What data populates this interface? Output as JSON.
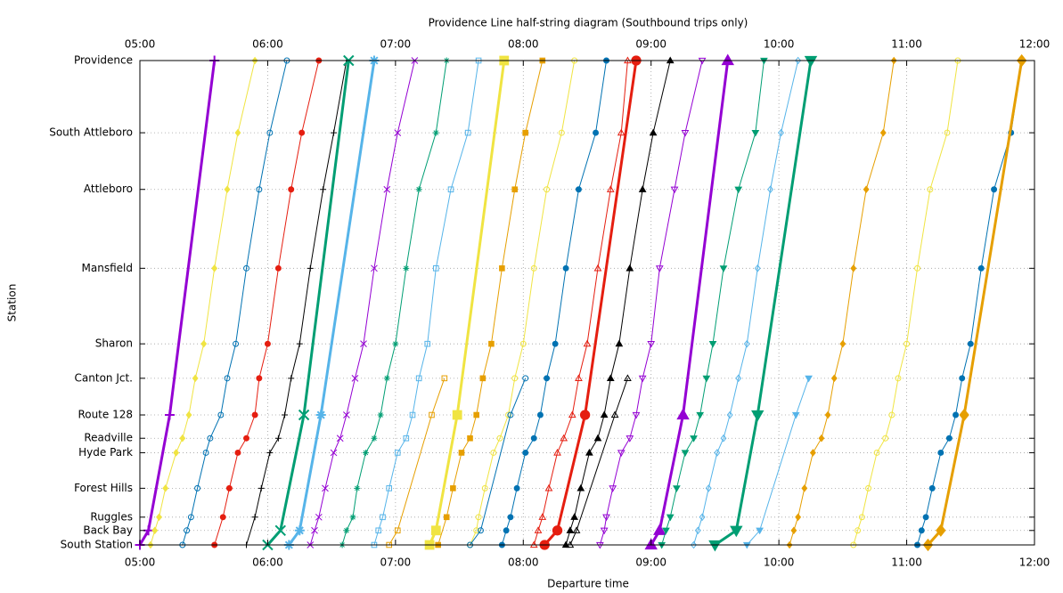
{
  "chart_data": {
    "type": "line",
    "title": "Providence Line half-string diagram (Southbound trips only)",
    "x_label": "Departure time",
    "y_label": "Station",
    "grid": true,
    "xlim": [
      300,
      720
    ],
    "xticks": [
      {
        "value": 300,
        "label": "05:00"
      },
      {
        "value": 360,
        "label": "06:00"
      },
      {
        "value": 420,
        "label": "07:00"
      },
      {
        "value": 480,
        "label": "08:00"
      },
      {
        "value": 540,
        "label": "09:00"
      },
      {
        "value": 600,
        "label": "10:00"
      },
      {
        "value": 660,
        "label": "11:00"
      },
      {
        "value": 720,
        "label": "12:00"
      }
    ],
    "ylim": [
      0,
      43.6
    ],
    "yticks": [
      {
        "value": 0,
        "label": "South Station"
      },
      {
        "value": 1.3,
        "label": "Back Bay"
      },
      {
        "value": 2.5,
        "label": "Ruggles"
      },
      {
        "value": 5.1,
        "label": "Forest Hills"
      },
      {
        "value": 8.3,
        "label": "Hyde Park"
      },
      {
        "value": 9.6,
        "label": "Readville"
      },
      {
        "value": 11.7,
        "label": "Route 128"
      },
      {
        "value": 15,
        "label": "Canton Jct."
      },
      {
        "value": 18.1,
        "label": "Sharon"
      },
      {
        "value": 24.9,
        "label": "Mansfield"
      },
      {
        "value": 32,
        "label": "Attleboro"
      },
      {
        "value": 37.1,
        "label": "South Attleboro"
      },
      {
        "value": 43.6,
        "label": "Providence"
      }
    ],
    "series": [
      {
        "color": "#9400d3",
        "marker": "plus",
        "line_width": 3,
        "x": [
          300,
          304,
          314,
          335
        ],
        "values": [
          0,
          1.3,
          11.7,
          43.6
        ]
      },
      {
        "color": "#f0e442",
        "marker": "diamond",
        "line_width": 1,
        "x": [
          305,
          307,
          309,
          312,
          317,
          320,
          323,
          326,
          330,
          335,
          341,
          346,
          354
        ],
        "values": [
          0,
          1.3,
          2.5,
          5.1,
          8.3,
          9.6,
          11.7,
          15,
          18.1,
          24.9,
          32,
          37.1,
          43.6
        ]
      },
      {
        "color": "#0072b2",
        "marker": "circle-open",
        "line_width": 1,
        "x": [
          320,
          322,
          324,
          327,
          331,
          333,
          338,
          341,
          345,
          350,
          356,
          361,
          369
        ],
        "values": [
          0,
          1.3,
          2.5,
          5.1,
          8.3,
          9.6,
          11.7,
          15,
          18.1,
          24.9,
          32,
          37.1,
          43.6
        ]
      },
      {
        "color": "#e51e10",
        "marker": "circle",
        "line_width": 1,
        "x": [
          335,
          339,
          342,
          346,
          350,
          354,
          356,
          360,
          365,
          371,
          376,
          384
        ],
        "values": [
          0,
          2.5,
          5.1,
          8.3,
          9.6,
          11.7,
          15,
          18.1,
          24.9,
          32,
          37.1,
          43.6
        ]
      },
      {
        "color": "#000000",
        "marker": "plus",
        "line_width": 1,
        "x": [
          350,
          354,
          357,
          361,
          365,
          368,
          371,
          375,
          380,
          386,
          391,
          397
        ],
        "values": [
          0,
          2.5,
          5.1,
          8.3,
          9.6,
          11.7,
          15,
          18.1,
          24.9,
          32,
          37.1,
          43.6
        ]
      },
      {
        "color": "#009e73",
        "marker": "cross",
        "line_width": 3,
        "x": [
          360,
          366,
          377,
          398
        ],
        "values": [
          0,
          1.3,
          11.7,
          43.6
        ]
      },
      {
        "color": "#56b4e9",
        "marker": "star",
        "line_width": 3,
        "x": [
          370,
          375,
          385,
          410
        ],
        "values": [
          0,
          1.3,
          11.7,
          43.6
        ]
      },
      {
        "color": "#9400d3",
        "marker": "cross",
        "line_width": 1,
        "x": [
          380,
          382,
          384,
          387,
          391,
          394,
          397,
          401,
          405,
          410,
          416,
          421,
          429
        ],
        "values": [
          0,
          1.3,
          2.5,
          5.1,
          8.3,
          9.6,
          11.7,
          15,
          18.1,
          24.9,
          32,
          37.1,
          43.6
        ]
      },
      {
        "color": "#009e73",
        "marker": "star",
        "line_width": 1,
        "x": [
          395,
          397,
          400,
          402,
          406,
          410,
          413,
          416,
          420,
          425,
          431,
          439,
          444
        ],
        "values": [
          0,
          1.3,
          2.5,
          5.1,
          8.3,
          9.6,
          11.7,
          15,
          18.1,
          24.9,
          32,
          37.1,
          43.6
        ]
      },
      {
        "color": "#56b4e9",
        "marker": "square-open",
        "line_width": 1,
        "x": [
          410,
          412,
          414,
          417,
          421,
          425,
          428,
          431,
          435,
          439,
          446,
          454,
          459
        ],
        "values": [
          0,
          1.3,
          2.5,
          5.1,
          8.3,
          9.6,
          11.7,
          15,
          18.1,
          24.9,
          32,
          37.1,
          43.6
        ]
      },
      {
        "color": "#e69f00",
        "marker": "square-open",
        "line_width": 1,
        "x": [
          417,
          421,
          437,
          443
        ],
        "values": [
          0,
          1.3,
          11.7,
          15
        ]
      },
      {
        "color": "#f0e442",
        "marker": "square",
        "line_width": 3,
        "x": [
          436,
          439,
          449,
          471
        ],
        "values": [
          0,
          1.3,
          11.7,
          43.6
        ]
      },
      {
        "color": "#e69f00",
        "marker": "square",
        "line_width": 1,
        "x": [
          440,
          444,
          447,
          451,
          455,
          458,
          461,
          465,
          470,
          476,
          481,
          489
        ],
        "values": [
          0,
          2.5,
          5.1,
          8.3,
          9.6,
          11.7,
          15,
          18.1,
          24.9,
          32,
          37.1,
          43.6
        ]
      },
      {
        "color": "#f0e442",
        "marker": "circle-open",
        "line_width": 1,
        "x": [
          455,
          458,
          459,
          462,
          466,
          469,
          473,
          476,
          480,
          485,
          491,
          498,
          504
        ],
        "values": [
          0,
          1.3,
          2.5,
          5.1,
          8.3,
          9.6,
          11.7,
          15,
          18.1,
          24.9,
          32,
          37.1,
          43.6
        ]
      },
      {
        "color": "#0072b2",
        "marker": "circle-open",
        "line_width": 1,
        "x": [
          455,
          460,
          474,
          481
        ],
        "values": [
          0,
          1.3,
          11.7,
          15
        ]
      },
      {
        "color": "#0072b2",
        "marker": "circle",
        "line_width": 1,
        "x": [
          470,
          472,
          474,
          477,
          481,
          485,
          488,
          491,
          495,
          500,
          506,
          514,
          519
        ],
        "values": [
          0,
          1.3,
          2.5,
          5.1,
          8.3,
          9.6,
          11.7,
          15,
          18.1,
          24.9,
          32,
          37.1,
          43.6
        ]
      },
      {
        "color": "#e51e10",
        "marker": "triangle-open",
        "line_width": 1,
        "x": [
          485,
          487,
          489,
          492,
          496,
          499,
          503,
          506,
          510,
          515,
          521,
          526,
          529
        ],
        "values": [
          0,
          1.3,
          2.5,
          5.1,
          8.3,
          9.6,
          11.7,
          15,
          18.1,
          24.9,
          32,
          37.1,
          43.6
        ]
      },
      {
        "color": "#e51e10",
        "marker": "circle",
        "line_width": 3,
        "x": [
          490,
          496,
          509,
          533
        ],
        "values": [
          0,
          1.3,
          11.7,
          43.6
        ]
      },
      {
        "color": "#000000",
        "marker": "triangle",
        "line_width": 1,
        "x": [
          500,
          502,
          504,
          507,
          511,
          515,
          518,
          521,
          525,
          530,
          536,
          541,
          549
        ],
        "values": [
          0,
          1.3,
          2.5,
          5.1,
          8.3,
          9.6,
          11.7,
          15,
          18.1,
          24.9,
          32,
          37.1,
          43.6
        ]
      },
      {
        "color": "#000000",
        "marker": "triangle-open",
        "line_width": 1,
        "x": [
          502,
          505,
          523,
          529
        ],
        "values": [
          0,
          1.3,
          11.7,
          15
        ]
      },
      {
        "color": "#9400d3",
        "marker": "triangle-down-open",
        "line_width": 1,
        "x": [
          516,
          518,
          519,
          522,
          526,
          530,
          533,
          536,
          540,
          544,
          551,
          556,
          564
        ],
        "values": [
          0,
          1.3,
          2.5,
          5.1,
          8.3,
          9.6,
          11.7,
          15,
          18.1,
          24.9,
          32,
          37.1,
          43.6
        ]
      },
      {
        "color": "#9400d3",
        "marker": "triangle",
        "line_width": 3,
        "x": [
          540,
          544,
          555,
          576
        ],
        "values": [
          0,
          1.3,
          11.7,
          43.6
        ]
      },
      {
        "color": "#009e73",
        "marker": "triangle-down",
        "line_width": 1,
        "x": [
          545,
          547,
          549,
          552,
          556,
          560,
          563,
          566,
          569,
          574,
          581,
          589,
          593
        ],
        "values": [
          0,
          1.3,
          2.5,
          5.1,
          8.3,
          9.6,
          11.7,
          15,
          18.1,
          24.9,
          32,
          37.1,
          43.6
        ]
      },
      {
        "color": "#56b4e9",
        "marker": "diamond-open",
        "line_width": 1,
        "x": [
          560,
          562,
          564,
          567,
          571,
          574,
          577,
          581,
          585,
          590,
          596,
          601,
          609
        ],
        "values": [
          0,
          1.3,
          2.5,
          5.1,
          8.3,
          9.6,
          11.7,
          15,
          18.1,
          24.9,
          32,
          37.1,
          43.6
        ]
      },
      {
        "color": "#009e73",
        "marker": "triangle-down",
        "line_width": 3,
        "x": [
          570,
          580,
          590,
          615
        ],
        "values": [
          0,
          1.3,
          11.7,
          43.6
        ]
      },
      {
        "color": "#56b4e9",
        "marker": "triangle-down",
        "line_width": 1,
        "x": [
          585,
          591,
          608,
          614
        ],
        "values": [
          0,
          1.3,
          11.7,
          15
        ]
      },
      {
        "color": "#e69f00",
        "marker": "diamond",
        "line_width": 1,
        "x": [
          605,
          607,
          609,
          612,
          616,
          620,
          623,
          626,
          630,
          635,
          641,
          649,
          654
        ],
        "values": [
          0,
          1.3,
          2.5,
          5.1,
          8.3,
          9.6,
          11.7,
          15,
          18.1,
          24.9,
          32,
          37.1,
          43.6
        ]
      },
      {
        "color": "#f0e442",
        "marker": "circle-open",
        "line_width": 1,
        "x": [
          635,
          637,
          639,
          642,
          646,
          650,
          653,
          656,
          660,
          665,
          671,
          679,
          684
        ],
        "values": [
          0,
          1.3,
          2.5,
          5.1,
          8.3,
          9.6,
          11.7,
          15,
          18.1,
          24.9,
          32,
          37.1,
          43.6
        ]
      },
      {
        "color": "#0072b2",
        "marker": "circle",
        "line_width": 1,
        "x": [
          665,
          667,
          669,
          672,
          676,
          680,
          683,
          686,
          690,
          695,
          701,
          709,
          714
        ],
        "values": [
          0,
          1.3,
          2.5,
          5.1,
          8.3,
          9.6,
          11.7,
          15,
          18.1,
          24.9,
          32,
          37.1,
          43.6
        ]
      },
      {
        "color": "#e69f00",
        "marker": "diamond",
        "line_width": 3,
        "x": [
          670,
          676,
          687,
          714
        ],
        "values": [
          0,
          1.3,
          11.7,
          43.6
        ]
      }
    ]
  }
}
